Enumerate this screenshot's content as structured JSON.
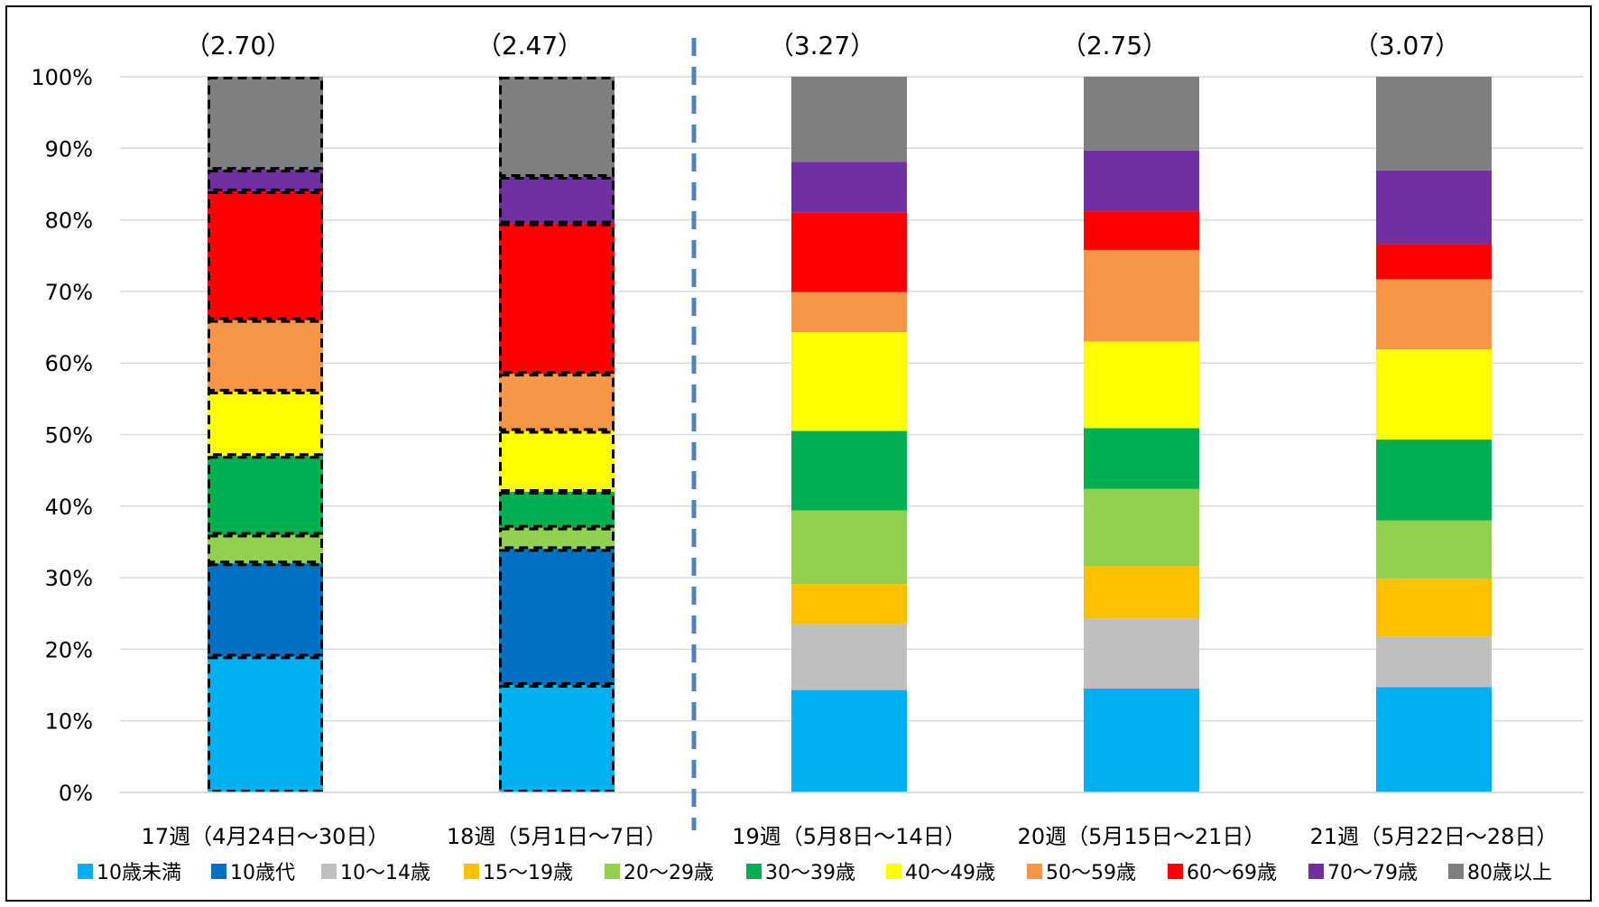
{
  "chart_data": {
    "type": "bar",
    "stacked": true,
    "normalized": true,
    "categories": [
      "17週（4月24日～30日）",
      "18週（5月1日～7日）",
      "19週（5月8日～14日）",
      "20週（5月15日～21日）",
      "21週（5月22日～28日）"
    ],
    "annotations": [
      "（2.70）",
      "（2.47）",
      "（3.27）",
      "（2.75）",
      "（3.07）"
    ],
    "dashed_outline_categories": [
      0,
      1
    ],
    "divider_after_category": 1,
    "yticks": [
      "0%",
      "10%",
      "20%",
      "30%",
      "40%",
      "50%",
      "60%",
      "70%",
      "80%",
      "90%",
      "100%"
    ],
    "ylim": [
      0,
      100
    ],
    "grid": true,
    "legend_position": "bottom",
    "series": [
      {
        "name": "10歳未満",
        "color": "#00B0F0",
        "values": [
          19,
          15,
          14.3,
          14.5,
          14.7
        ]
      },
      {
        "name": "10歳代",
        "color": "#0070C0",
        "values": [
          13,
          19,
          0,
          0,
          0
        ]
      },
      {
        "name": "10～14歳",
        "color": "#BFBFBF",
        "values": [
          0,
          0,
          9.2,
          9.8,
          7.1
        ]
      },
      {
        "name": "15～19歳",
        "color": "#FFC000",
        "values": [
          0,
          0,
          5.6,
          7.3,
          8.1
        ]
      },
      {
        "name": "20～29歳",
        "color": "#92D050",
        "values": [
          4,
          3,
          10.3,
          10.8,
          8.1
        ]
      },
      {
        "name": "30～39歳",
        "color": "#00B050",
        "values": [
          11,
          5,
          11.1,
          8.5,
          11.3
        ]
      },
      {
        "name": "40～49歳",
        "color": "#FFFF00",
        "values": [
          9,
          8.5,
          13.8,
          12.1,
          12.6
        ]
      },
      {
        "name": "50～59歳",
        "color": "#F79646",
        "values": [
          10,
          8,
          5.6,
          12.8,
          9.8
        ]
      },
      {
        "name": "60～69歳",
        "color": "#FF0000",
        "values": [
          18,
          21,
          11.1,
          5.4,
          4.9
        ]
      },
      {
        "name": "70～79歳",
        "color": "#7030A0",
        "values": [
          3,
          6.5,
          7.1,
          8.5,
          10.3
        ]
      },
      {
        "name": "80歳以上",
        "color": "#7F7F7F",
        "values": [
          13,
          14,
          11.9,
          10.3,
          13.1
        ]
      }
    ]
  }
}
